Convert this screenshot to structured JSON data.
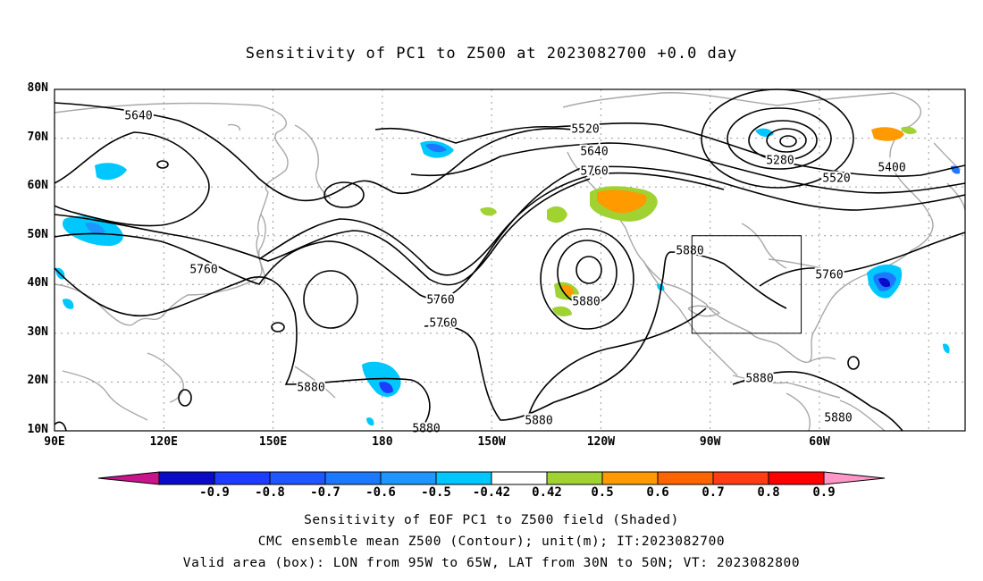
{
  "title": "Sensitivity of PC1 to Z500 at 2023082700 +0.0 day",
  "map": {
    "lat_ticks": [
      "80N",
      "70N",
      "60N",
      "50N",
      "40N",
      "30N",
      "20N",
      "10N"
    ],
    "lon_ticks": [
      "90E",
      "120E",
      "150E",
      "180",
      "150W",
      "120W",
      "90W",
      "60W"
    ],
    "lon_range": [
      90,
      340
    ],
    "lat_range": [
      10,
      80
    ],
    "contour_interval_m": 60,
    "contour_labels": [
      "5640",
      "5520",
      "5640",
      "5760",
      "5280",
      "5400",
      "5520",
      "5760",
      "5760",
      "5880",
      "5760",
      "5760",
      "5880",
      "5880",
      "5880",
      "5880",
      "5880",
      "5880",
      "5880"
    ],
    "valid_box": {
      "lon": [
        265,
        295
      ],
      "lat": [
        30,
        50
      ]
    },
    "colors": {
      "land": "#a8a8a8",
      "contour": "#000000",
      "grid": "#9a9a9a"
    }
  },
  "colorbar": {
    "labels": [
      "-0.9",
      "-0.8",
      "-0.7",
      "-0.6",
      "-0.5",
      "-0.42",
      "0.42",
      "0.5",
      "0.6",
      "0.7",
      "0.8",
      "0.9"
    ],
    "colors": [
      "#c8158c",
      "#0a0ac8",
      "#1e3cff",
      "#2056ff",
      "#1e78ff",
      "#1e96ff",
      "#00c8ff",
      "#ffffff",
      "#a0d232",
      "#ff9a00",
      "#ff6400",
      "#ff3c14",
      "#ff0000",
      "#ff96c8"
    ]
  },
  "footer": {
    "line1": "Sensitivity of EOF PC1 to Z500 field (Shaded)",
    "line2": "CMC ensemble mean Z500 (Contour); unit(m); IT:2023082700",
    "line3": "Valid area (box): LON from 95W to 65W, LAT from 30N to 50N; VT: 2023082800"
  }
}
